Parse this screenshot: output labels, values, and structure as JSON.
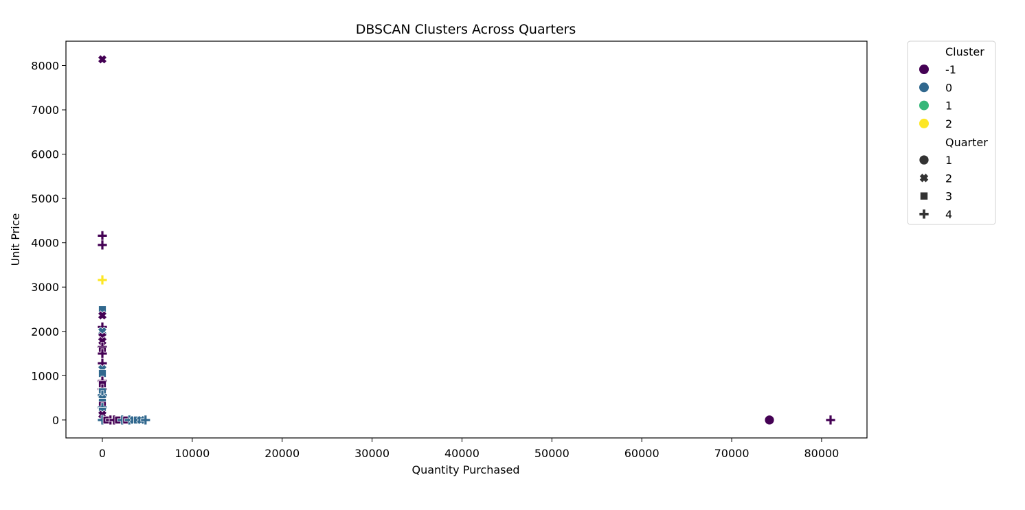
{
  "chart_data": {
    "type": "scatter",
    "title": "DBSCAN Clusters Across Quarters",
    "xlabel": "Quantity Purchased",
    "ylabel": "Unit Price",
    "xlim": [
      -4050,
      85050
    ],
    "ylim": [
      -405,
      8550
    ],
    "x_ticks": [
      0,
      10000,
      20000,
      30000,
      40000,
      50000,
      60000,
      70000,
      80000
    ],
    "y_ticks": [
      0,
      1000,
      2000,
      3000,
      4000,
      5000,
      6000,
      7000,
      8000
    ],
    "grid": false,
    "legend_position": "outside-top-right",
    "legend": {
      "hue_title": "Cluster",
      "hue_entries": [
        {
          "label": "-1",
          "color": "#440154"
        },
        {
          "label": "0",
          "color": "#31688e"
        },
        {
          "label": "1",
          "color": "#35b779"
        },
        {
          "label": "2",
          "color": "#fde725"
        }
      ],
      "style_title": "Quarter",
      "style_entries": [
        {
          "label": "1",
          "marker": "circle"
        },
        {
          "label": "2",
          "marker": "x"
        },
        {
          "label": "3",
          "marker": "square"
        },
        {
          "label": "4",
          "marker": "plus"
        }
      ]
    },
    "points": [
      {
        "x": 0,
        "y": 8140,
        "cluster": "-1",
        "quarter": "2"
      },
      {
        "x": 0,
        "y": 4160,
        "cluster": "-1",
        "quarter": "4"
      },
      {
        "x": 0,
        "y": 3950,
        "cluster": "-1",
        "quarter": "4"
      },
      {
        "x": 0,
        "y": 3160,
        "cluster": "2",
        "quarter": "4"
      },
      {
        "x": 0,
        "y": 2490,
        "cluster": "0",
        "quarter": "3"
      },
      {
        "x": 0,
        "y": 2360,
        "cluster": "-1",
        "quarter": "2"
      },
      {
        "x": 0,
        "y": 2100,
        "cluster": "-1",
        "quarter": "4"
      },
      {
        "x": 0,
        "y": 2000,
        "cluster": "0",
        "quarter": "2"
      },
      {
        "x": 0,
        "y": 1880,
        "cluster": "-1",
        "quarter": "2"
      },
      {
        "x": 0,
        "y": 1780,
        "cluster": "-1",
        "quarter": "2"
      },
      {
        "x": 0,
        "y": 1650,
        "cluster": "-1",
        "quarter": "4"
      },
      {
        "x": 0,
        "y": 1560,
        "cluster": "-1",
        "quarter": "3"
      },
      {
        "x": 0,
        "y": 1500,
        "cluster": "-1",
        "quarter": "4"
      },
      {
        "x": 0,
        "y": 1280,
        "cluster": "-1",
        "quarter": "4"
      },
      {
        "x": 0,
        "y": 1150,
        "cluster": "0",
        "quarter": "2"
      },
      {
        "x": 0,
        "y": 1050,
        "cluster": "0",
        "quarter": "3"
      },
      {
        "x": 0,
        "y": 880,
        "cluster": "-1",
        "quarter": "4"
      },
      {
        "x": 0,
        "y": 800,
        "cluster": "-1",
        "quarter": "3"
      },
      {
        "x": 0,
        "y": 700,
        "cluster": "-1",
        "quarter": "4"
      },
      {
        "x": 0,
        "y": 640,
        "cluster": "0",
        "quarter": "3"
      },
      {
        "x": 0,
        "y": 560,
        "cluster": "0",
        "quarter": "4"
      },
      {
        "x": 0,
        "y": 480,
        "cluster": "0",
        "quarter": "2"
      },
      {
        "x": 0,
        "y": 400,
        "cluster": "0",
        "quarter": "3"
      },
      {
        "x": 0,
        "y": 330,
        "cluster": "-1",
        "quarter": "3"
      },
      {
        "x": 0,
        "y": 280,
        "cluster": "0",
        "quarter": "4"
      },
      {
        "x": 0,
        "y": 200,
        "cluster": "0",
        "quarter": "3"
      },
      {
        "x": 0,
        "y": 120,
        "cluster": "-1",
        "quarter": "2"
      },
      {
        "x": 0,
        "y": 0,
        "cluster": "0",
        "quarter": "4"
      },
      {
        "x": 500,
        "y": 0,
        "cluster": "-1",
        "quarter": "3"
      },
      {
        "x": 900,
        "y": 0,
        "cluster": "-1",
        "quarter": "4"
      },
      {
        "x": 1300,
        "y": 0,
        "cluster": "-1",
        "quarter": "4"
      },
      {
        "x": 1800,
        "y": 0,
        "cluster": "-1",
        "quarter": "3"
      },
      {
        "x": 2200,
        "y": 0,
        "cluster": "0",
        "quarter": "4"
      },
      {
        "x": 2700,
        "y": 0,
        "cluster": "-1",
        "quarter": "3"
      },
      {
        "x": 3000,
        "y": 0,
        "cluster": "0",
        "quarter": "4"
      },
      {
        "x": 3500,
        "y": 0,
        "cluster": "0",
        "quarter": "2"
      },
      {
        "x": 3900,
        "y": 0,
        "cluster": "0",
        "quarter": "3"
      },
      {
        "x": 4300,
        "y": 0,
        "cluster": "0",
        "quarter": "2"
      },
      {
        "x": 4800,
        "y": 0,
        "cluster": "0",
        "quarter": "4"
      },
      {
        "x": 74200,
        "y": 0,
        "cluster": "-1",
        "quarter": "1"
      },
      {
        "x": 81000,
        "y": 0,
        "cluster": "-1",
        "quarter": "4"
      }
    ]
  }
}
